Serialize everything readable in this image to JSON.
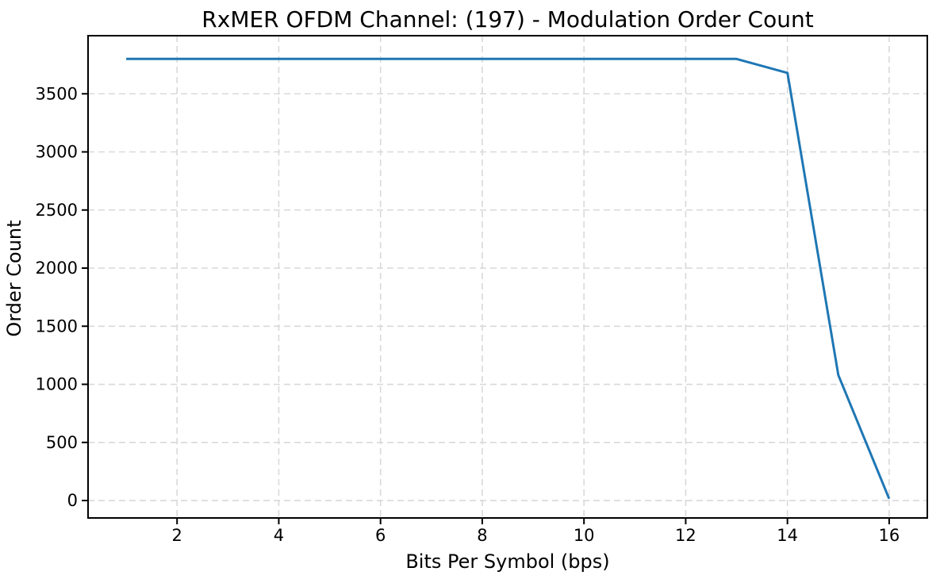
{
  "chart_data": {
    "type": "line",
    "title": "RxMER OFDM Channel: (197) - Modulation Order Count",
    "xlabel": "Bits Per Symbol (bps)",
    "ylabel": "Order Count",
    "x": [
      1,
      2,
      3,
      4,
      5,
      6,
      7,
      8,
      9,
      10,
      11,
      12,
      13,
      14,
      15,
      16
    ],
    "y": [
      3800,
      3800,
      3800,
      3800,
      3800,
      3800,
      3800,
      3800,
      3800,
      3800,
      3800,
      3800,
      3800,
      3680,
      1080,
      15
    ],
    "xticks": [
      2,
      4,
      6,
      8,
      10,
      12,
      14,
      16
    ],
    "yticks": [
      0,
      500,
      1000,
      1500,
      2000,
      2500,
      3000,
      3500
    ],
    "xlim": [
      0.25,
      16.75
    ],
    "ylim": [
      -150,
      4000
    ],
    "line_color": "#1f77b4",
    "line_width": 3,
    "grid": true,
    "grid_style": "dashed",
    "grid_color": "#d9d9d9",
    "spine_color": "#000000",
    "background": "#ffffff",
    "legend": null
  }
}
